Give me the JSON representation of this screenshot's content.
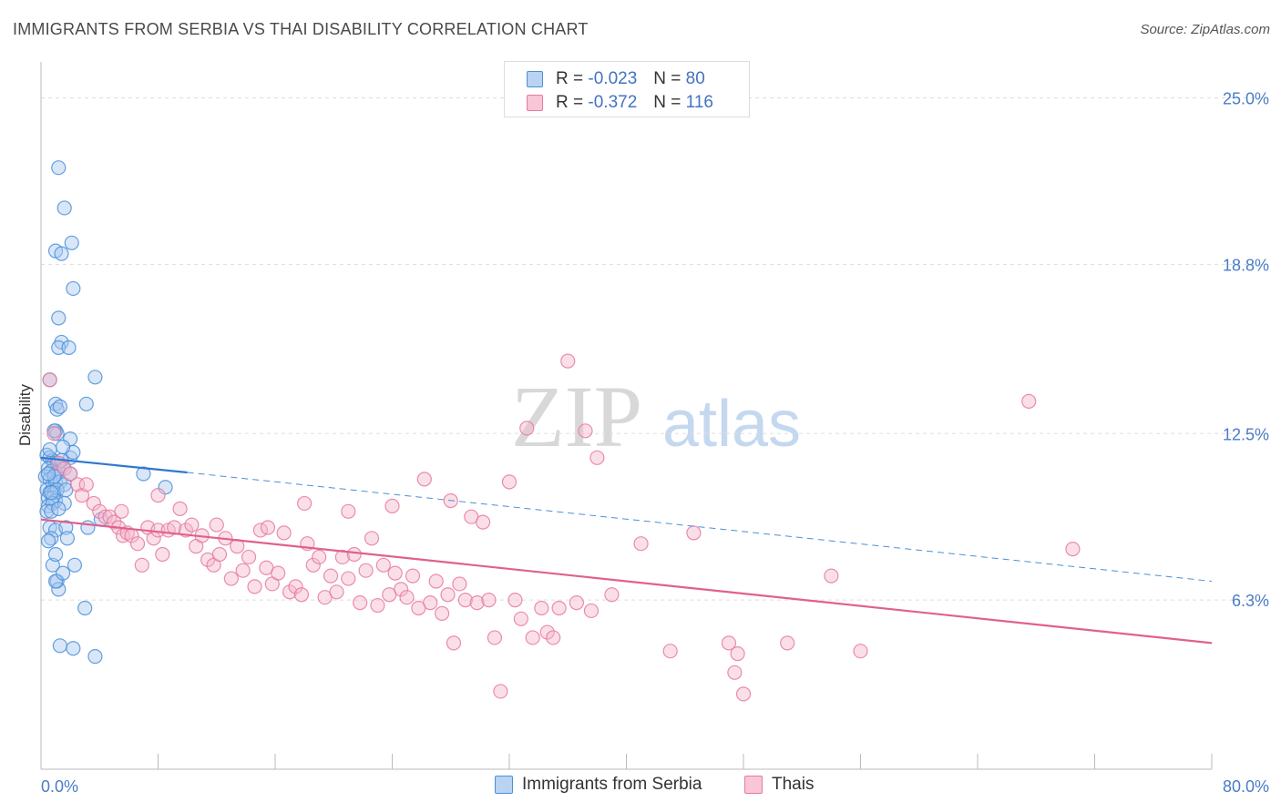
{
  "title": "IMMIGRANTS FROM SERBIA VS THAI DISABILITY CORRELATION CHART",
  "source": "Source: ZipAtlas.com",
  "watermark": {
    "zip": "ZIP",
    "atlas": "atlas"
  },
  "legend": {
    "rows": [
      {
        "r_label": "R =",
        "r_value": "-0.023",
        "n_label": "N =",
        "n_value": "80",
        "color": "#4a90d9"
      },
      {
        "r_label": "R =",
        "r_value": "-0.372",
        "n_label": "N =",
        "n_value": "116",
        "color": "#e879a0"
      }
    ]
  },
  "chart_data": {
    "type": "scatter",
    "title": "IMMIGRANTS FROM SERBIA VS THAI DISABILITY CORRELATION CHART",
    "xlabel": "",
    "ylabel": "Disability",
    "xlim": [
      0,
      80
    ],
    "ylim": [
      0,
      26
    ],
    "x_tick_labels": [
      "0.0%",
      "80.0%"
    ],
    "y_ticks": [
      6.3,
      12.5,
      18.8,
      25.0
    ],
    "y_tick_labels": [
      "6.3%",
      "12.5%",
      "18.8%",
      "25.0%"
    ],
    "grid": true,
    "series": [
      {
        "name": "Immigrants from Serbia",
        "color": "#4a90d9",
        "fill": "#a8c8f0",
        "trend": {
          "x0": 0,
          "y0": 11.6,
          "x1": 10,
          "y1": 11.05,
          "dashed_to_x": 80,
          "dashed_to_y": 7.0
        },
        "points": [
          [
            1.2,
            22.4
          ],
          [
            1.6,
            20.9
          ],
          [
            2.1,
            19.6
          ],
          [
            1.0,
            19.3
          ],
          [
            1.4,
            19.2
          ],
          [
            2.2,
            17.9
          ],
          [
            1.2,
            16.8
          ],
          [
            1.4,
            15.9
          ],
          [
            1.2,
            15.7
          ],
          [
            1.9,
            15.7
          ],
          [
            3.7,
            14.6
          ],
          [
            0.6,
            14.5
          ],
          [
            1.0,
            13.6
          ],
          [
            1.1,
            13.4
          ],
          [
            3.1,
            13.6
          ],
          [
            1.0,
            12.6
          ],
          [
            1.1,
            12.5
          ],
          [
            2.0,
            12.3
          ],
          [
            0.4,
            11.7
          ],
          [
            0.6,
            11.6
          ],
          [
            0.8,
            11.5
          ],
          [
            0.9,
            11.4
          ],
          [
            1.1,
            11.4
          ],
          [
            0.5,
            11.2
          ],
          [
            0.7,
            11.1
          ],
          [
            1.0,
            11.0
          ],
          [
            1.2,
            11.1
          ],
          [
            1.5,
            11.3
          ],
          [
            0.3,
            10.9
          ],
          [
            0.6,
            10.8
          ],
          [
            0.8,
            10.6
          ],
          [
            1.0,
            10.7
          ],
          [
            1.3,
            10.7
          ],
          [
            1.6,
            10.6
          ],
          [
            2.0,
            11.0
          ],
          [
            0.4,
            10.4
          ],
          [
            0.6,
            10.3
          ],
          [
            0.9,
            10.3
          ],
          [
            1.1,
            10.4
          ],
          [
            1.7,
            10.4
          ],
          [
            0.5,
            10.1
          ],
          [
            0.8,
            10.1
          ],
          [
            1.0,
            10.0
          ],
          [
            2.0,
            11.6
          ],
          [
            2.2,
            11.8
          ],
          [
            0.5,
            9.8
          ],
          [
            0.8,
            9.9
          ],
          [
            1.6,
            9.9
          ],
          [
            0.4,
            9.6
          ],
          [
            0.7,
            9.6
          ],
          [
            4.1,
            9.3
          ],
          [
            0.6,
            9.0
          ],
          [
            1.0,
            8.9
          ],
          [
            1.7,
            9.0
          ],
          [
            3.2,
            9.0
          ],
          [
            0.7,
            8.6
          ],
          [
            1.8,
            8.6
          ],
          [
            0.5,
            8.5
          ],
          [
            0.8,
            7.6
          ],
          [
            2.3,
            7.6
          ],
          [
            1.1,
            7.0
          ],
          [
            1.2,
            6.7
          ],
          [
            1.0,
            7.0
          ],
          [
            3.0,
            6.0
          ],
          [
            1.3,
            4.6
          ],
          [
            2.2,
            4.5
          ],
          [
            3.7,
            4.2
          ],
          [
            7.0,
            11.0
          ],
          [
            8.5,
            10.5
          ],
          [
            1.5,
            12.0
          ],
          [
            0.9,
            12.6
          ],
          [
            1.3,
            13.5
          ],
          [
            0.6,
            11.9
          ],
          [
            0.9,
            10.9
          ],
          [
            1.4,
            11.5
          ],
          [
            0.7,
            10.3
          ],
          [
            1.2,
            9.7
          ],
          [
            0.5,
            11.0
          ],
          [
            1.0,
            8.0
          ],
          [
            1.5,
            7.3
          ]
        ]
      },
      {
        "name": "Thais",
        "color": "#e879a0",
        "fill": "#f5b8cc",
        "trend": {
          "x0": 0,
          "y0": 9.3,
          "x1": 80,
          "y1": 4.7
        },
        "points": [
          [
            0.6,
            14.5
          ],
          [
            0.9,
            12.5
          ],
          [
            1.2,
            11.4
          ],
          [
            1.6,
            11.2
          ],
          [
            2.0,
            11.0
          ],
          [
            2.5,
            10.6
          ],
          [
            2.8,
            10.2
          ],
          [
            3.1,
            10.6
          ],
          [
            3.6,
            9.9
          ],
          [
            4.0,
            9.6
          ],
          [
            4.4,
            9.4
          ],
          [
            4.7,
            9.4
          ],
          [
            5.0,
            9.2
          ],
          [
            5.3,
            9.0
          ],
          [
            5.6,
            8.7
          ],
          [
            5.9,
            8.8
          ],
          [
            6.2,
            8.7
          ],
          [
            6.6,
            8.4
          ],
          [
            6.9,
            7.6
          ],
          [
            7.3,
            9.0
          ],
          [
            7.7,
            8.6
          ],
          [
            8.0,
            8.9
          ],
          [
            8.3,
            8.0
          ],
          [
            8.7,
            8.9
          ],
          [
            9.1,
            9.0
          ],
          [
            9.5,
            9.7
          ],
          [
            9.9,
            8.9
          ],
          [
            10.3,
            9.1
          ],
          [
            10.6,
            8.3
          ],
          [
            11.0,
            8.7
          ],
          [
            11.4,
            7.8
          ],
          [
            11.8,
            7.6
          ],
          [
            12.2,
            8.0
          ],
          [
            12.6,
            8.6
          ],
          [
            13.0,
            7.1
          ],
          [
            13.4,
            8.3
          ],
          [
            13.8,
            7.4
          ],
          [
            14.2,
            7.9
          ],
          [
            14.6,
            6.8
          ],
          [
            15.0,
            8.9
          ],
          [
            15.4,
            7.5
          ],
          [
            15.8,
            6.9
          ],
          [
            16.2,
            7.3
          ],
          [
            16.6,
            8.8
          ],
          [
            17.0,
            6.6
          ],
          [
            17.4,
            6.8
          ],
          [
            17.8,
            6.5
          ],
          [
            18.2,
            8.4
          ],
          [
            18.6,
            7.6
          ],
          [
            19.0,
            7.9
          ],
          [
            19.4,
            6.4
          ],
          [
            19.8,
            7.2
          ],
          [
            20.2,
            6.6
          ],
          [
            20.6,
            7.9
          ],
          [
            21.0,
            7.1
          ],
          [
            21.4,
            8.0
          ],
          [
            21.8,
            6.2
          ],
          [
            22.2,
            7.4
          ],
          [
            22.6,
            8.6
          ],
          [
            23.0,
            6.1
          ],
          [
            23.4,
            7.6
          ],
          [
            23.8,
            6.5
          ],
          [
            24.2,
            7.3
          ],
          [
            24.6,
            6.7
          ],
          [
            25.0,
            6.4
          ],
          [
            25.4,
            7.2
          ],
          [
            25.8,
            6.0
          ],
          [
            26.2,
            10.8
          ],
          [
            26.6,
            6.2
          ],
          [
            27.0,
            7.0
          ],
          [
            27.4,
            5.8
          ],
          [
            27.8,
            6.5
          ],
          [
            28.2,
            4.7
          ],
          [
            28.6,
            6.9
          ],
          [
            29.0,
            6.3
          ],
          [
            29.4,
            9.4
          ],
          [
            29.8,
            6.2
          ],
          [
            30.2,
            9.2
          ],
          [
            30.6,
            6.3
          ],
          [
            31.0,
            4.9
          ],
          [
            31.4,
            2.9
          ],
          [
            32.0,
            10.7
          ],
          [
            32.4,
            6.3
          ],
          [
            32.8,
            5.6
          ],
          [
            33.2,
            12.7
          ],
          [
            33.6,
            4.9
          ],
          [
            34.2,
            6.0
          ],
          [
            34.6,
            5.1
          ],
          [
            35.0,
            4.9
          ],
          [
            35.4,
            6.0
          ],
          [
            36.0,
            15.2
          ],
          [
            36.6,
            6.2
          ],
          [
            37.2,
            12.6
          ],
          [
            37.6,
            5.9
          ],
          [
            38.0,
            11.6
          ],
          [
            39.0,
            6.5
          ],
          [
            41.0,
            8.4
          ],
          [
            43.0,
            4.4
          ],
          [
            44.6,
            8.8
          ],
          [
            47.0,
            4.7
          ],
          [
            47.6,
            4.3
          ],
          [
            47.4,
            3.6
          ],
          [
            48.0,
            2.8
          ],
          [
            51.0,
            4.7
          ],
          [
            54.0,
            7.2
          ],
          [
            56.0,
            4.4
          ],
          [
            67.5,
            13.7
          ],
          [
            70.5,
            8.2
          ],
          [
            12.0,
            9.1
          ],
          [
            18.0,
            9.9
          ],
          [
            21.0,
            9.6
          ],
          [
            24.0,
            9.8
          ],
          [
            28.0,
            10.0
          ],
          [
            15.5,
            9.0
          ],
          [
            8.0,
            10.2
          ],
          [
            5.5,
            9.6
          ]
        ]
      }
    ]
  }
}
